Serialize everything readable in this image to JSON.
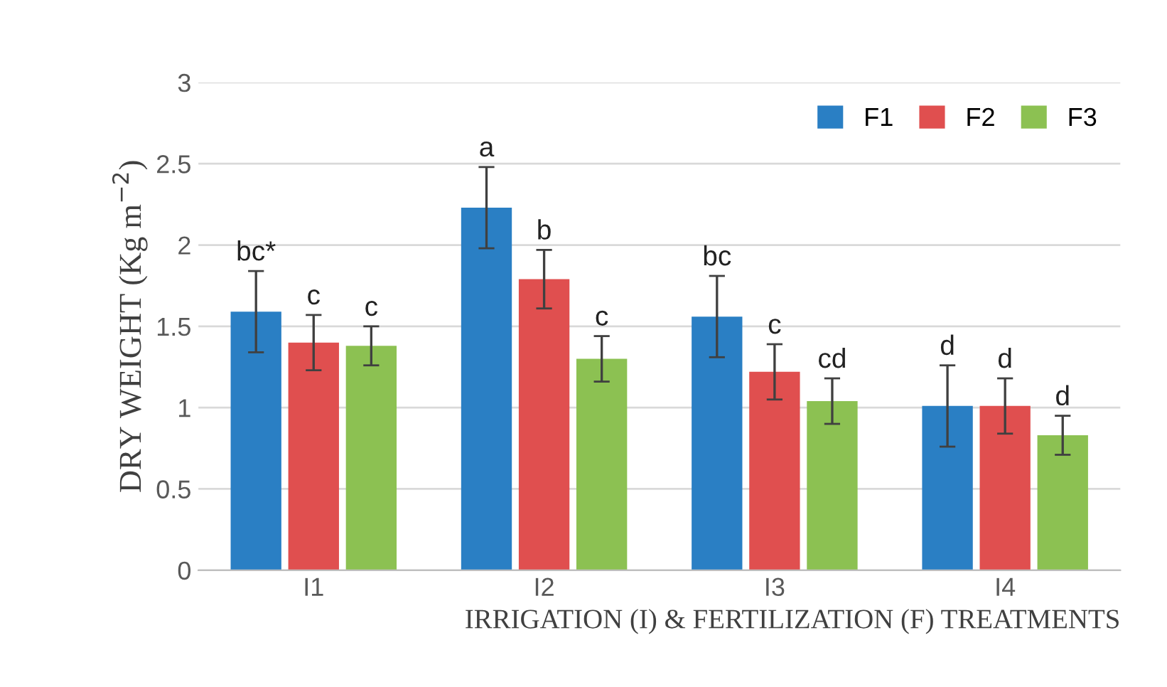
{
  "chart_data": {
    "type": "bar",
    "xlabel": "IRRIGATION (I) & FERTILIZATION (F) TREATMENTS",
    "ylabel": "DRY WEIGHT (Kg m$^{−2}$)",
    "categories": [
      "I1",
      "I2",
      "I3",
      "I4"
    ],
    "series": [
      {
        "name": "F1",
        "color": "#2a7fc4",
        "values": [
          1.59,
          2.23,
          1.56,
          1.01
        ],
        "errors": [
          0.25,
          0.25,
          0.25,
          0.25
        ],
        "value_labels": [
          "bc*",
          "a",
          "bc",
          "d"
        ]
      },
      {
        "name": "F2",
        "color": "#e04f4f",
        "values": [
          1.4,
          1.79,
          1.22,
          1.01
        ],
        "errors": [
          0.17,
          0.18,
          0.17,
          0.17
        ],
        "value_labels": [
          "c",
          "b",
          "c",
          "d"
        ]
      },
      {
        "name": "F3",
        "color": "#8cc152",
        "values": [
          1.38,
          1.3,
          1.04,
          0.83
        ],
        "errors": [
          0.12,
          0.14,
          0.14,
          0.12
        ],
        "value_labels": [
          "c",
          "c",
          "cd",
          "d"
        ]
      }
    ],
    "ylim": [
      0,
      3
    ],
    "yticks": [
      0,
      0.5,
      1,
      1.5,
      2,
      2.5,
      3
    ],
    "grid": "y",
    "legend": "top right"
  }
}
